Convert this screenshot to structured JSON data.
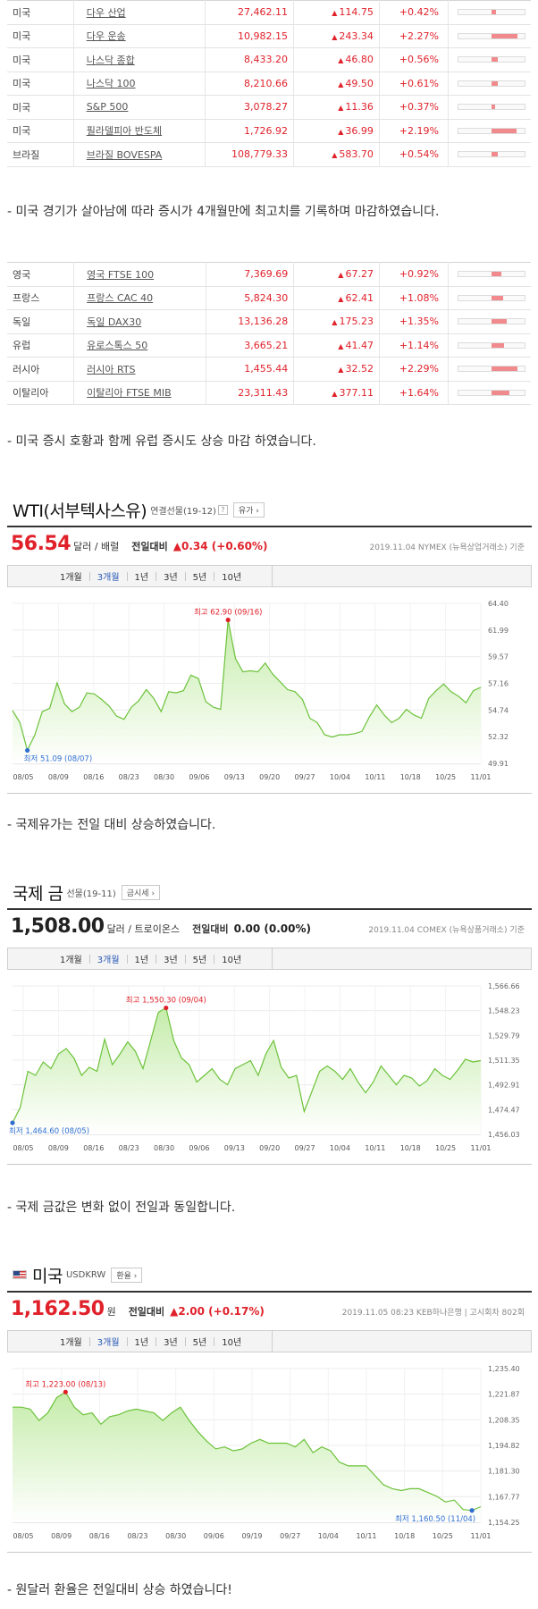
{
  "us_indices": [
    {
      "country": "미국",
      "name": "다우 산업",
      "value": "27,462.11",
      "change": "114.75",
      "pct": "+0.42%",
      "bar": 0.14
    },
    {
      "country": "미국",
      "name": "다우 운송",
      "value": "10,982.15",
      "change": "243.34",
      "pct": "+2.27%",
      "bar": 0.78
    },
    {
      "country": "미국",
      "name": "나스닥 종합",
      "value": "8,433.20",
      "change": "46.80",
      "pct": "+0.56%",
      "bar": 0.18
    },
    {
      "country": "미국",
      "name": "나스닥 100",
      "value": "8,210.66",
      "change": "49.50",
      "pct": "+0.61%",
      "bar": 0.2
    },
    {
      "country": "미국",
      "name": "S&P 500",
      "value": "3,078.27",
      "change": "11.36",
      "pct": "+0.37%",
      "bar": 0.12
    },
    {
      "country": "미국",
      "name": "필라델피아 반도체",
      "value": "1,726.92",
      "change": "36.99",
      "pct": "+2.19%",
      "bar": 0.75
    },
    {
      "country": "브라질",
      "name": "브라질 BOVESPA",
      "value": "108,779.33",
      "change": "583.70",
      "pct": "+0.54%",
      "bar": 0.18
    }
  ],
  "us_note": "- 미국 경기가 살아남에 따라 증시가 4개월만에 최고치를 기록하며 마감하였습니다.",
  "eu_indices": [
    {
      "country": "영국",
      "name": "영국 FTSE 100",
      "value": "7,369.69",
      "change": "67.27",
      "pct": "+0.92%",
      "bar": 0.3
    },
    {
      "country": "프랑스",
      "name": "프랑스 CAC 40",
      "value": "5,824.30",
      "change": "62.41",
      "pct": "+1.08%",
      "bar": 0.36
    },
    {
      "country": "독일",
      "name": "독일 DAX30",
      "value": "13,136.28",
      "change": "175.23",
      "pct": "+1.35%",
      "bar": 0.45
    },
    {
      "country": "유럽",
      "name": "유로스톡스 50",
      "value": "3,665.21",
      "change": "41.47",
      "pct": "+1.14%",
      "bar": 0.38
    },
    {
      "country": "러시아",
      "name": "러시아 RTS",
      "value": "1,455.44",
      "change": "32.52",
      "pct": "+2.29%",
      "bar": 0.78
    },
    {
      "country": "이탈리아",
      "name": "이탈리아 FTSE MIB",
      "value": "23,311.43",
      "change": "377.11",
      "pct": "+1.64%",
      "bar": 0.55
    }
  ],
  "eu_note": "- 미국 증시 호황과 함께 유럽 증시도 상승 마감 하였습니다.",
  "wti": {
    "title": "WTI(서부텍사스유)",
    "subtitle": "연결선물(19-12)",
    "button": "유가",
    "price": "56.54",
    "unit": "달러 / 배럴",
    "change_label": "전일대비",
    "change": "▲0.34 (+0.60%)",
    "source": "2019.11.04 NYMEX (뉴욕상업거래소) 기준",
    "note": "- 국제유가는 전일 대비 상승하였습니다."
  },
  "gold": {
    "title": "국제 금",
    "subtitle": "선물(19-11)",
    "button": "금시세",
    "price": "1,508.00",
    "unit": "달러 / 트로이온스",
    "change_label": "전일대비",
    "change": "0.00 (0.00%)",
    "source": "2019.11.04 COMEX (뉴욕상품거래소) 기준",
    "note": "- 국제 금값은 변화 없이 전일과 동일합니다."
  },
  "usd": {
    "title": "미국",
    "subtitle": "USDKRW",
    "button": "환율",
    "price": "1,162.50",
    "unit": "원",
    "change_label": "전일대비",
    "change": "▲2.00 (+0.17%)",
    "source": "2019.11.05 08:23 KEB하나은행 | 고시회차 802회",
    "note": "- 원달러 환율은 전일대비 상승 하였습니다!"
  },
  "periods": [
    "1개월",
    "3개월",
    "1년",
    "3년",
    "5년",
    "10년"
  ],
  "active_period": "3개월",
  "colors": {
    "up": "#e0212a",
    "line": "#6cc23a",
    "fill_top": "#c5ecaa",
    "low": "#2f6fd0"
  },
  "chart_data": [
    {
      "type": "area",
      "title": "WTI(서부텍사스유)",
      "x_ticks": [
        "08/05",
        "08/09",
        "08/16",
        "08/23",
        "08/30",
        "09/06",
        "09/13",
        "09/20",
        "09/27",
        "10/04",
        "10/11",
        "10/18",
        "10/25",
        "11/01"
      ],
      "y_ticks": [
        "64.40",
        "61.99",
        "59.57",
        "57.16",
        "54.74",
        "52.32",
        "49.91"
      ],
      "ylim": [
        49.91,
        64.4
      ],
      "values": [
        54.7,
        53.6,
        51.09,
        52.5,
        54.6,
        54.9,
        57.2,
        55.3,
        54.6,
        55.0,
        56.3,
        56.2,
        55.7,
        55.1,
        54.2,
        53.9,
        55.0,
        55.6,
        56.6,
        55.8,
        54.6,
        56.4,
        56.3,
        56.5,
        57.9,
        57.6,
        55.5,
        55.0,
        54.8,
        62.9,
        59.4,
        58.2,
        58.3,
        58.2,
        59.0,
        58.0,
        57.3,
        56.6,
        56.4,
        55.7,
        54.0,
        53.6,
        52.5,
        52.3,
        52.5,
        52.5,
        52.6,
        52.8,
        54.1,
        55.2,
        54.3,
        53.6,
        54.0,
        54.8,
        54.3,
        54.0,
        55.8,
        56.5,
        57.1,
        56.4,
        56.0,
        55.4,
        56.5,
        56.8
      ],
      "high": {
        "label": "최고 62.90 (09/16)",
        "value": 62.9
      },
      "low": {
        "label": "최저 51.09 (08/07)",
        "value": 51.09
      }
    },
    {
      "type": "area",
      "title": "국제 금",
      "x_ticks": [
        "08/05",
        "08/09",
        "08/16",
        "08/23",
        "08/30",
        "09/06",
        "09/13",
        "09/20",
        "09/27",
        "10/04",
        "10/11",
        "10/18",
        "10/25",
        "11/01"
      ],
      "y_ticks": [
        "1,566.66",
        "1,548.23",
        "1,529.79",
        "1,511.35",
        "1,492.91",
        "1,474.47",
        "1,456.03"
      ],
      "ylim": [
        1456.03,
        1566.66
      ],
      "values": [
        1464.6,
        1476.0,
        1503.0,
        1500.0,
        1510.0,
        1505.0,
        1516.0,
        1520.0,
        1513.0,
        1500.0,
        1506.0,
        1503.0,
        1527.0,
        1508.0,
        1516.0,
        1525.0,
        1518.0,
        1505.0,
        1526.0,
        1547.0,
        1550.3,
        1526.0,
        1513.0,
        1508.0,
        1495.0,
        1500.0,
        1505.0,
        1497.0,
        1493.0,
        1505.0,
        1508.0,
        1511.0,
        1500.0,
        1516.0,
        1526.0,
        1506.0,
        1498.0,
        1500.0,
        1473.0,
        1488.0,
        1503.0,
        1507.0,
        1503.0,
        1497.0,
        1505.0,
        1495.0,
        1487.0,
        1495.0,
        1507.0,
        1500.0,
        1493.0,
        1500.0,
        1498.0,
        1492.0,
        1496.0,
        1505.0,
        1500.0,
        1497.0,
        1504.0,
        1512.0,
        1510.0,
        1511.0
      ],
      "high": {
        "label": "최고 1,550.30 (09/04)",
        "value": 1550.3
      },
      "low": {
        "label": "최저 1,464.60 (08/05)",
        "value": 1464.6
      }
    },
    {
      "type": "area",
      "title": "미국 USDKRW",
      "x_ticks": [
        "08/05",
        "08/09",
        "08/16",
        "08/23",
        "08/30",
        "09/06",
        "09/19",
        "09/27",
        "10/04",
        "10/11",
        "10/18",
        "10/25",
        "11/01"
      ],
      "y_ticks": [
        "1,235.40",
        "1,221.87",
        "1,208.35",
        "1,194.82",
        "1,181.30",
        "1,167.77",
        "1,154.25"
      ],
      "ylim": [
        1154.25,
        1235.4
      ],
      "values": [
        1215.0,
        1215.0,
        1214.0,
        1208.0,
        1212.0,
        1220.0,
        1223.0,
        1215.0,
        1211.0,
        1212.0,
        1206.0,
        1210.0,
        1211.0,
        1213.0,
        1214.0,
        1213.0,
        1212.0,
        1208.0,
        1212.0,
        1215.0,
        1208.0,
        1202.0,
        1197.0,
        1193.0,
        1194.0,
        1192.0,
        1193.0,
        1196.0,
        1198.0,
        1196.0,
        1196.0,
        1196.0,
        1194.0,
        1198.0,
        1191.0,
        1194.0,
        1192.0,
        1186.0,
        1184.0,
        1184.0,
        1184.0,
        1179.0,
        1174.0,
        1172.0,
        1171.0,
        1172.0,
        1172.0,
        1170.0,
        1168.0,
        1165.0,
        1166.0,
        1161.0,
        1160.5,
        1162.5
      ],
      "high": {
        "label": "최고 1,223.00 (08/13)",
        "value": 1223.0
      },
      "low": {
        "label": "최저 1,160.50 (11/04)",
        "value": 1160.5
      }
    }
  ]
}
